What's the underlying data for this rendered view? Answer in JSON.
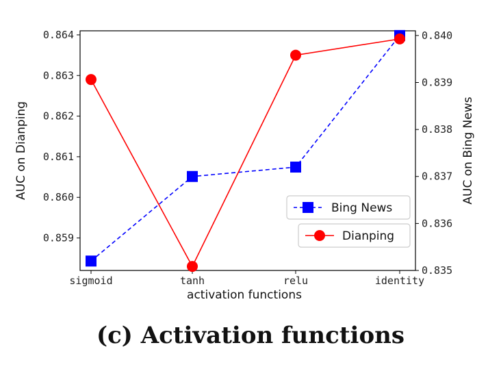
{
  "caption": "(c) Activation functions",
  "chart_data": {
    "type": "line",
    "xlabel": "activation functions",
    "categories": [
      "sigmoid",
      "tanh",
      "relu",
      "identity"
    ],
    "ylabel_left": "AUC on Dianping",
    "ylabel_right": "AUC on Bing News",
    "ylim_left": [
      0.8582,
      0.8641
    ],
    "ylim_right": [
      0.835,
      0.8401
    ],
    "yticks_left": [
      "0.859",
      "0.860",
      "0.861",
      "0.862",
      "0.863",
      "0.864"
    ],
    "yticks_right": [
      "0.835",
      "0.836",
      "0.837",
      "0.838",
      "0.839",
      "0.840"
    ],
    "grid": false,
    "legend": "right",
    "series": [
      {
        "name": "Bing News",
        "axis": "right",
        "color": "#0000ff",
        "line": "dashed",
        "marker": "square",
        "values": [
          0.8352,
          0.837,
          0.8372,
          0.84
        ]
      },
      {
        "name": "Dianping",
        "axis": "left",
        "color": "#ff0000",
        "line": "solid",
        "marker": "circle",
        "values": [
          0.8629,
          0.8583,
          0.8635,
          0.8639
        ]
      }
    ]
  }
}
